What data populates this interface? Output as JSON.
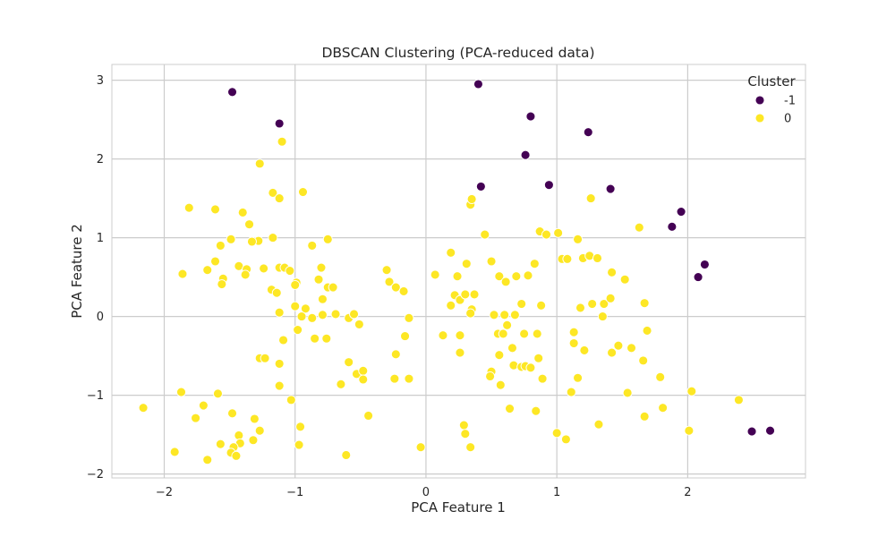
{
  "chart_data": {
    "type": "scatter",
    "title": "DBSCAN Clustering (PCA-reduced data)",
    "xlabel": "PCA Feature 1",
    "ylabel": "PCA Feature 2",
    "xlim": [
      -2.4,
      2.9
    ],
    "ylim": [
      -2.05,
      3.2
    ],
    "xticks": [
      -2,
      -1,
      0,
      1,
      2
    ],
    "yticks": [
      -2,
      -1,
      0,
      1,
      2,
      3
    ],
    "grid": true,
    "legend": {
      "title": "Cluster",
      "placement": "top-right"
    },
    "series": [
      {
        "name": "-1",
        "color": "#440154",
        "points": [
          [
            -1.48,
            2.85
          ],
          [
            -1.12,
            2.45
          ],
          [
            0.4,
            2.95
          ],
          [
            0.8,
            2.54
          ],
          [
            1.24,
            2.34
          ],
          [
            0.76,
            2.05
          ],
          [
            0.42,
            1.65
          ],
          [
            0.94,
            1.67
          ],
          [
            1.41,
            1.62
          ],
          [
            1.95,
            1.33
          ],
          [
            1.88,
            1.14
          ],
          [
            2.13,
            0.66
          ],
          [
            2.08,
            0.5
          ],
          [
            2.49,
            -1.46
          ],
          [
            2.63,
            -1.45
          ]
        ]
      },
      {
        "name": "0",
        "color": "#fde725",
        "points": [
          [
            -1.1,
            2.22
          ],
          [
            -1.27,
            1.94
          ],
          [
            -1.17,
            1.57
          ],
          [
            -1.12,
            1.5
          ],
          [
            -0.94,
            1.58
          ],
          [
            -1.81,
            1.38
          ],
          [
            -1.61,
            1.36
          ],
          [
            -1.4,
            1.32
          ],
          [
            -1.35,
            1.17
          ],
          [
            -1.49,
            0.98
          ],
          [
            -1.57,
            0.9
          ],
          [
            -1.28,
            0.96
          ],
          [
            -1.33,
            0.95
          ],
          [
            -1.17,
            1.0
          ],
          [
            -0.87,
            0.9
          ],
          [
            -0.75,
            0.98
          ],
          [
            -1.61,
            0.7
          ],
          [
            -1.67,
            0.59
          ],
          [
            -1.86,
            0.54
          ],
          [
            -1.43,
            0.64
          ],
          [
            -1.37,
            0.6
          ],
          [
            -1.55,
            0.48
          ],
          [
            -1.56,
            0.41
          ],
          [
            -1.38,
            0.53
          ],
          [
            -1.24,
            0.61
          ],
          [
            -1.12,
            0.62
          ],
          [
            -1.08,
            0.62
          ],
          [
            -1.04,
            0.58
          ],
          [
            -0.99,
            0.43
          ],
          [
            -1.0,
            0.4
          ],
          [
            -0.8,
            0.62
          ],
          [
            -0.82,
            0.47
          ],
          [
            -0.75,
            0.37
          ],
          [
            -0.71,
            0.37
          ],
          [
            -1.18,
            0.34
          ],
          [
            -1.14,
            0.3
          ],
          [
            -0.79,
            0.22
          ],
          [
            -1.12,
            0.05
          ],
          [
            -1.0,
            0.13
          ],
          [
            -0.92,
            0.1
          ],
          [
            -0.95,
            0.0
          ],
          [
            -0.87,
            -0.02
          ],
          [
            -0.79,
            0.02
          ],
          [
            -0.69,
            0.03
          ],
          [
            -0.59,
            -0.02
          ],
          [
            -0.55,
            0.03
          ],
          [
            -0.51,
            -0.1
          ],
          [
            -1.09,
            -0.3
          ],
          [
            -0.98,
            -0.17
          ],
          [
            -0.85,
            -0.28
          ],
          [
            -0.76,
            -0.28
          ],
          [
            -1.27,
            -0.53
          ],
          [
            -1.23,
            -0.53
          ],
          [
            -1.12,
            -0.6
          ],
          [
            -0.59,
            -0.58
          ],
          [
            -0.53,
            -0.73
          ],
          [
            -0.48,
            -0.69
          ],
          [
            -0.48,
            -0.8
          ],
          [
            -0.65,
            -0.86
          ],
          [
            -1.12,
            -0.88
          ],
          [
            -1.03,
            -1.06
          ],
          [
            -0.96,
            -1.4
          ],
          [
            -0.97,
            -1.63
          ],
          [
            -0.44,
            -1.26
          ],
          [
            -0.61,
            -1.76
          ],
          [
            -1.87,
            -0.96
          ],
          [
            -1.59,
            -0.98
          ],
          [
            -1.7,
            -1.13
          ],
          [
            -1.76,
            -1.29
          ],
          [
            -1.48,
            -1.23
          ],
          [
            -1.31,
            -1.3
          ],
          [
            -1.27,
            -1.45
          ],
          [
            -1.43,
            -1.51
          ],
          [
            -1.42,
            -1.61
          ],
          [
            -1.32,
            -1.57
          ],
          [
            -1.47,
            -1.66
          ],
          [
            -1.49,
            -1.73
          ],
          [
            -1.45,
            -1.77
          ],
          [
            -1.57,
            -1.62
          ],
          [
            -1.67,
            -1.82
          ],
          [
            -1.92,
            -1.72
          ],
          [
            -2.16,
            -1.16
          ],
          [
            -0.3,
            0.59
          ],
          [
            -0.28,
            0.44
          ],
          [
            -0.23,
            0.37
          ],
          [
            -0.17,
            0.32
          ],
          [
            -0.13,
            -0.02
          ],
          [
            -0.16,
            -0.25
          ],
          [
            -0.23,
            -0.48
          ],
          [
            -0.24,
            -0.79
          ],
          [
            -0.13,
            -0.79
          ],
          [
            -0.04,
            -1.66
          ],
          [
            0.07,
            0.53
          ],
          [
            0.19,
            0.81
          ],
          [
            0.31,
            0.67
          ],
          [
            0.34,
            1.42
          ],
          [
            0.35,
            1.49
          ],
          [
            0.45,
            1.04
          ],
          [
            0.5,
            0.7
          ],
          [
            0.56,
            0.51
          ],
          [
            0.61,
            0.44
          ],
          [
            0.69,
            0.51
          ],
          [
            0.78,
            0.52
          ],
          [
            0.83,
            0.67
          ],
          [
            0.24,
            0.51
          ],
          [
            0.22,
            0.27
          ],
          [
            0.26,
            0.21
          ],
          [
            0.3,
            0.28
          ],
          [
            0.37,
            0.28
          ],
          [
            0.19,
            0.14
          ],
          [
            0.35,
            0.09
          ],
          [
            0.34,
            0.04
          ],
          [
            0.52,
            0.02
          ],
          [
            0.6,
            0.02
          ],
          [
            0.62,
            -0.11
          ],
          [
            0.68,
            0.02
          ],
          [
            0.73,
            0.16
          ],
          [
            0.88,
            0.14
          ],
          [
            0.55,
            -0.22
          ],
          [
            0.59,
            -0.22
          ],
          [
            0.66,
            -0.4
          ],
          [
            0.75,
            -0.22
          ],
          [
            0.85,
            -0.22
          ],
          [
            0.13,
            -0.24
          ],
          [
            0.26,
            -0.24
          ],
          [
            0.26,
            -0.46
          ],
          [
            0.56,
            -0.49
          ],
          [
            0.5,
            -0.7
          ],
          [
            0.49,
            -0.76
          ],
          [
            0.57,
            -0.87
          ],
          [
            0.67,
            -0.62
          ],
          [
            0.73,
            -0.64
          ],
          [
            0.76,
            -0.63
          ],
          [
            0.8,
            -0.65
          ],
          [
            0.86,
            -0.53
          ],
          [
            0.89,
            -0.79
          ],
          [
            0.29,
            -1.38
          ],
          [
            0.3,
            -1.49
          ],
          [
            0.34,
            -1.66
          ],
          [
            0.64,
            -1.17
          ],
          [
            0.84,
            -1.2
          ],
          [
            0.87,
            1.08
          ],
          [
            0.92,
            1.04
          ],
          [
            1.01,
            1.06
          ],
          [
            1.04,
            0.73
          ],
          [
            1.08,
            0.73
          ],
          [
            1.16,
            0.98
          ],
          [
            1.2,
            0.74
          ],
          [
            1.25,
            0.77
          ],
          [
            1.31,
            0.74
          ],
          [
            1.26,
            1.5
          ],
          [
            1.18,
            0.11
          ],
          [
            1.27,
            0.16
          ],
          [
            1.36,
            0.16
          ],
          [
            1.41,
            0.23
          ],
          [
            1.42,
            0.56
          ],
          [
            1.52,
            0.47
          ],
          [
            1.67,
            0.17
          ],
          [
            1.63,
            1.13
          ],
          [
            1.13,
            -0.2
          ],
          [
            1.13,
            -0.34
          ],
          [
            1.21,
            -0.43
          ],
          [
            1.35,
            0.0
          ],
          [
            1.42,
            -0.46
          ],
          [
            1.47,
            -0.37
          ],
          [
            1.57,
            -0.4
          ],
          [
            1.66,
            -0.56
          ],
          [
            1.69,
            -0.18
          ],
          [
            1.79,
            -0.77
          ],
          [
            1.16,
            -0.78
          ],
          [
            1.11,
            -0.96
          ],
          [
            1.54,
            -0.97
          ],
          [
            1.67,
            -1.27
          ],
          [
            1.81,
            -1.16
          ],
          [
            2.03,
            -0.95
          ],
          [
            2.01,
            -1.45
          ],
          [
            2.39,
            -1.06
          ],
          [
            1.32,
            -1.37
          ],
          [
            1.0,
            -1.48
          ],
          [
            1.07,
            -1.56
          ]
        ]
      }
    ]
  }
}
